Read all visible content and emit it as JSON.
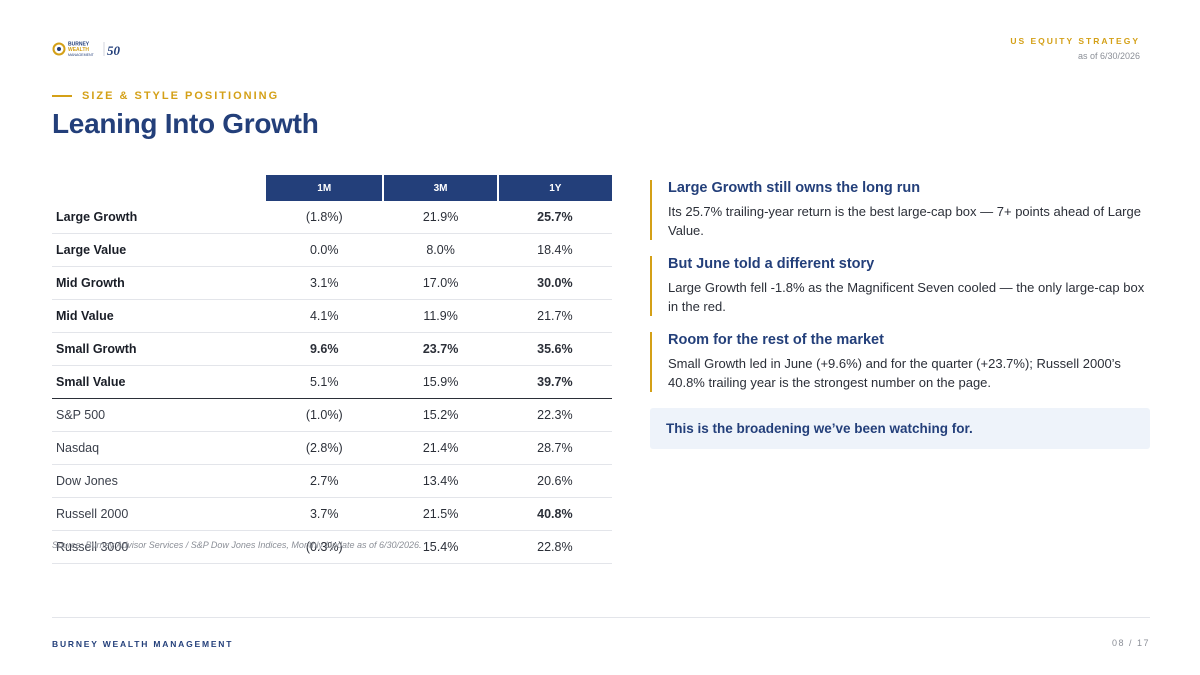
{
  "logo": {
    "lines": [
      "BURNEY",
      "WEALTH",
      "MANAGEMENT"
    ],
    "anniversary": "50"
  },
  "header": {
    "tag": "US EQUITY STRATEGY",
    "date": "as of 6/30/2026"
  },
  "eyebrow": "SIZE & STYLE POSITIONING",
  "title": "Leaning Into Growth",
  "table": {
    "columns": [
      "1M",
      "3M",
      "1Y"
    ],
    "rows": [
      {
        "name": "Large Growth",
        "group": "style",
        "values": [
          "(1.8%)",
          "21.9%",
          "25.7%"
        ],
        "tone": [
          "neg",
          "",
          "hi"
        ]
      },
      {
        "name": "Large Value",
        "group": "style",
        "values": [
          "0.0%",
          "8.0%",
          "18.4%"
        ],
        "tone": [
          "",
          "",
          ""
        ]
      },
      {
        "name": "Mid Growth",
        "group": "style",
        "values": [
          "3.1%",
          "17.0%",
          "30.0%"
        ],
        "tone": [
          "",
          "",
          "hi"
        ]
      },
      {
        "name": "Mid Value",
        "group": "style",
        "values": [
          "4.1%",
          "11.9%",
          "21.7%"
        ],
        "tone": [
          "",
          "",
          ""
        ]
      },
      {
        "name": "Small Growth",
        "group": "style",
        "values": [
          "9.6%",
          "23.7%",
          "35.6%"
        ],
        "tone": [
          "pos",
          "pos",
          "hi"
        ]
      },
      {
        "name": "Small Value",
        "group": "style",
        "values": [
          "5.1%",
          "15.9%",
          "39.7%"
        ],
        "tone": [
          "",
          "",
          "hi"
        ]
      },
      {
        "name": "S&P 500",
        "group": "index",
        "values": [
          "(1.0%)",
          "15.2%",
          "22.3%"
        ],
        "tone": [
          "neg",
          "",
          ""
        ]
      },
      {
        "name": "Nasdaq",
        "group": "index",
        "values": [
          "(2.8%)",
          "21.4%",
          "28.7%"
        ],
        "tone": [
          "neg",
          "",
          ""
        ]
      },
      {
        "name": "Dow Jones",
        "group": "index",
        "values": [
          "2.7%",
          "13.4%",
          "20.6%"
        ],
        "tone": [
          "",
          "",
          ""
        ]
      },
      {
        "name": "Russell 2000",
        "group": "index",
        "values": [
          "3.7%",
          "21.5%",
          "40.8%"
        ],
        "tone": [
          "",
          "",
          "gold"
        ]
      },
      {
        "name": "Russell 3000",
        "group": "index",
        "values": [
          "(0.3%)",
          "15.4%",
          "22.8%"
        ],
        "tone": [
          "neg",
          "",
          ""
        ]
      }
    ]
  },
  "source": "Source: Burney Advisor Services / S&P Dow Jones Indices, Monthly Update as of 6/30/2026.",
  "insights": [
    {
      "title": "Large Growth still owns the long run",
      "body": "Its 25.7% trailing-year return is the best large-cap box — 7+ points ahead of Large Value."
    },
    {
      "title": "But June told a different story",
      "body": "Large Growth fell -1.8% as the Magnificent Seven cooled — the only large-cap box in the red."
    },
    {
      "title": "Room for the rest of the market",
      "body": "Small Growth led in June (+9.6%) and for the quarter (+23.7%); Russell 2000’s 40.8% trailing year is the strongest number on the page."
    }
  ],
  "callout": "This is the broadening we’ve been watching for.",
  "footer": {
    "company": "BURNEY WEALTH MANAGEMENT",
    "page": "08 / 17"
  },
  "colors": {
    "navy": "#233f7a",
    "gold": "#d4a017",
    "negative": "#b43a2b",
    "positive": "#2e7d4f"
  }
}
